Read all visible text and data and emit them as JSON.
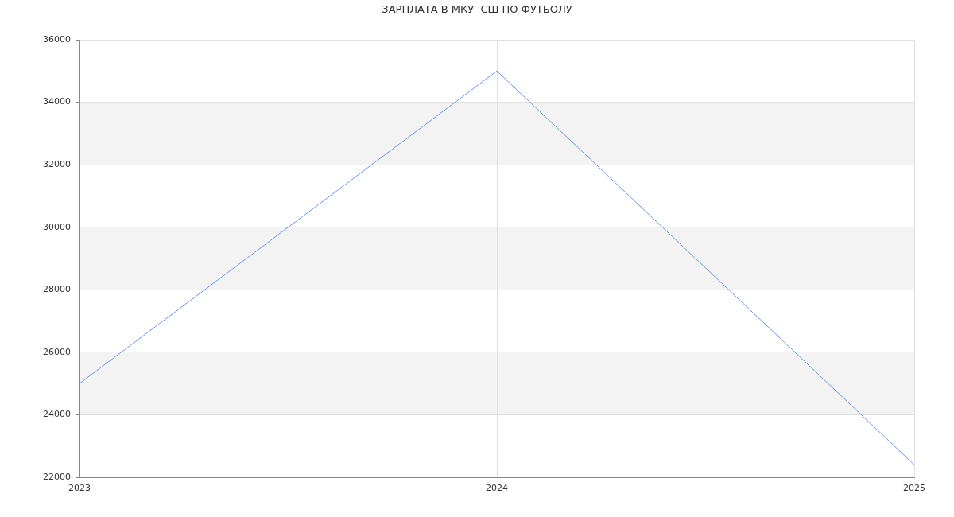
{
  "chart_data": {
    "type": "line",
    "title": "ЗАРПЛАТА В МКУ  СШ ПО ФУТБОЛУ",
    "categories": [
      "2023",
      "2024",
      "2025"
    ],
    "values": [
      25000,
      35000,
      22400
    ],
    "color": "#6495ed",
    "ylim": [
      22000,
      36000
    ],
    "yticks": [
      22000,
      24000,
      26000,
      28000,
      30000,
      32000,
      34000,
      36000
    ],
    "grid": true
  }
}
